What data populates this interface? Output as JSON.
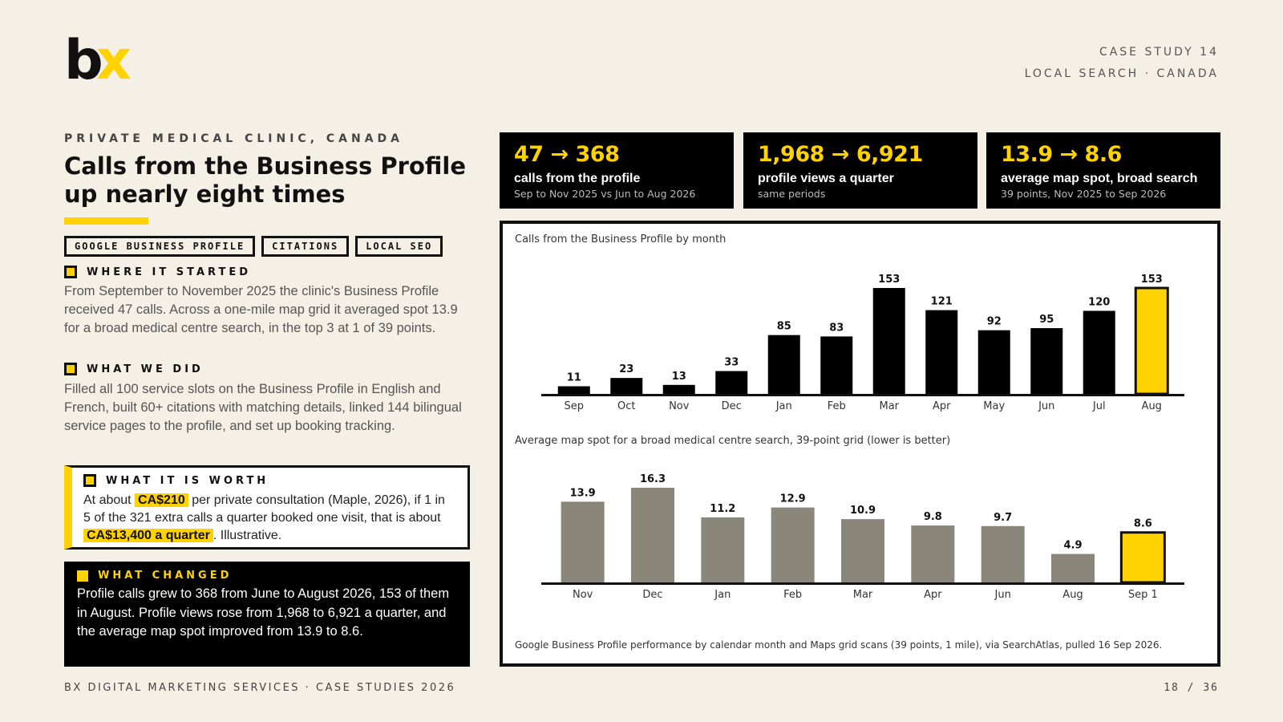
{
  "logo": {
    "part1": "b",
    "part2": "x"
  },
  "header": {
    "line1": "CASE STUDY 14",
    "line2": "LOCAL SEARCH · CANADA"
  },
  "eyebrow": "PRIVATE MEDICAL CLINIC, CANADA",
  "title": "Calls from the Business Profile up nearly eight times",
  "tags": [
    "GOOGLE BUSINESS PROFILE",
    "CITATIONS",
    "LOCAL SEO"
  ],
  "started": {
    "heading": "WHERE IT STARTED",
    "text": "From September to November 2025 the clinic's Business Profile received 47 calls. Across a one-mile map grid it averaged spot 13.9 for a broad medical centre search, in the top 3 at 1 of 39 points."
  },
  "did": {
    "heading": "WHAT WE DID",
    "text": "Filled all 100 service slots on the Business Profile in English and French, built 60+ citations with matching details, linked 144 bilingual service pages to the profile, and set up booking tracking."
  },
  "worth": {
    "heading": "WHAT IT IS WORTH",
    "t1": "At about ",
    "h1": "CA$210",
    "t2": " per private consultation (Maple, 2026), if 1 in 5 of the 321 extra calls a quarter booked one visit, that is about ",
    "h2": "CA$13,400 a quarter",
    "t3": ". Illustrative."
  },
  "changed": {
    "heading": "WHAT CHANGED",
    "text": "Profile calls grew to 368 from June to August 2026, 153 of them in August. Profile views rose from 1,968 to 6,921 a quarter, and the average map spot improved from 13.9 to 8.6."
  },
  "stats": [
    {
      "big": "47 → 368",
      "label": "calls from the profile",
      "sub": "Sep to Nov 2025 vs Jun to Aug 2026"
    },
    {
      "big": "1,968 → 6,921",
      "label": "profile views a quarter",
      "sub": "same periods"
    },
    {
      "big": "13.9 → 8.6",
      "label": "average map spot, broad search",
      "sub": "39 points, Nov 2025 to Sep 2026"
    }
  ],
  "footer": {
    "left": "BX DIGITAL MARKETING SERVICES · CASE STUDIES 2026",
    "right": "18 / 36"
  },
  "note": "Google Business Profile performance by calendar month and Maps grid scans (39 points, 1 mile), via SearchAtlas, pulled 16 Sep 2026.",
  "colors": {
    "accent": "#ffd200",
    "bar_dark": "#000000",
    "bar_grey": "#8a877a",
    "background": "#f4f0e6"
  },
  "chart_data": [
    {
      "type": "bar",
      "title": "Calls from the Business Profile by month",
      "categories": [
        "Sep",
        "Oct",
        "Nov",
        "Dec",
        "Jan",
        "Feb",
        "Mar",
        "Apr",
        "May",
        "Jun",
        "Jul",
        "Aug"
      ],
      "values": [
        11,
        23,
        13,
        33,
        85,
        83,
        153,
        121,
        92,
        95,
        120,
        153
      ],
      "highlight_index": 11,
      "ylim": [
        0,
        153
      ],
      "grid": false
    },
    {
      "type": "bar",
      "title": "Average map spot for a broad medical centre search, 39-point grid (lower is better)",
      "categories": [
        "Nov",
        "Dec",
        "Jan",
        "Feb",
        "Mar",
        "Apr",
        "Jun",
        "Aug",
        "Sep 1"
      ],
      "values": [
        13.9,
        16.3,
        11.2,
        12.9,
        10.9,
        9.8,
        9.7,
        4.9,
        8.6
      ],
      "highlight_index": 8,
      "ylim": [
        0,
        16.3
      ],
      "grid": false
    }
  ]
}
